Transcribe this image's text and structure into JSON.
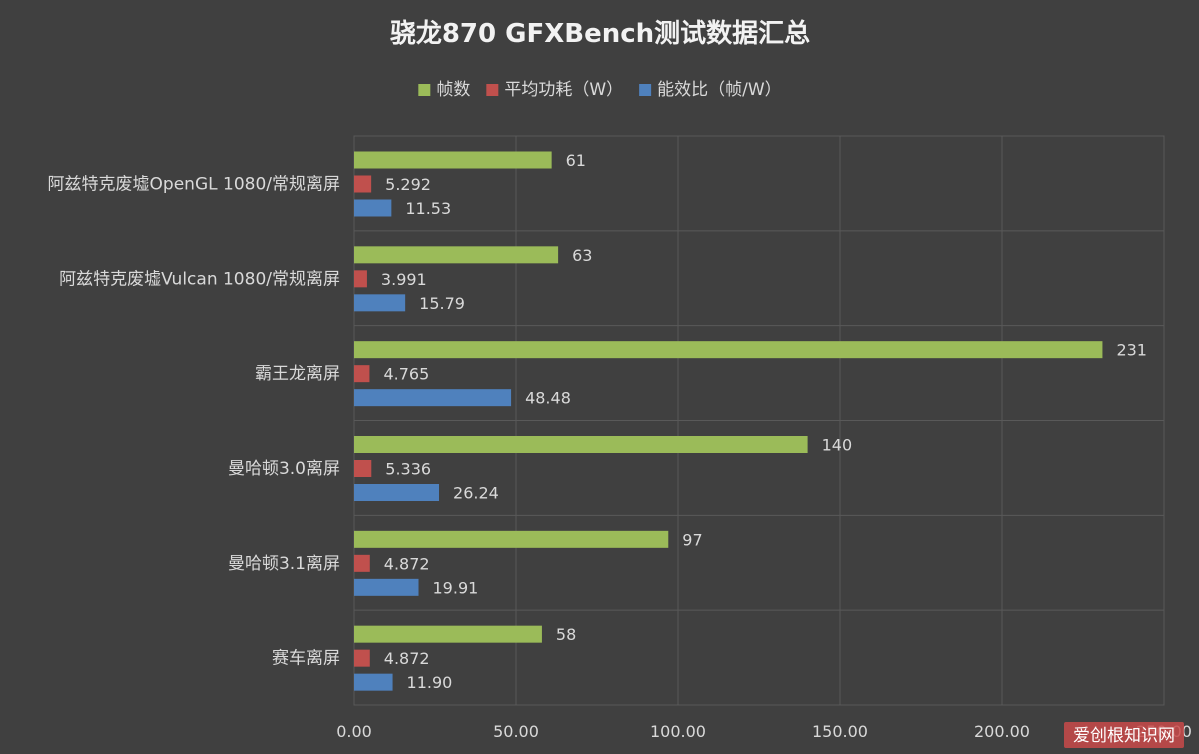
{
  "chart_data": {
    "type": "bar",
    "orientation": "horizontal",
    "title": "骁龙870 GFXBench测试数据汇总",
    "categories": [
      "阿兹特克废墟OpenGL 1080/常规离屏",
      "阿兹特克废墟Vulcan 1080/常规离屏",
      "霸王龙离屏",
      "曼哈顿3.0离屏",
      "曼哈顿3.1离屏",
      "赛车离屏"
    ],
    "series": [
      {
        "name": "帧数",
        "color": "#9bbb59",
        "values": [
          61,
          63,
          231,
          140,
          97,
          58
        ],
        "labels": [
          "61",
          "63",
          "231",
          "140",
          "97",
          "58"
        ]
      },
      {
        "name": "平均功耗（W）",
        "color": "#c0504d",
        "values": [
          5.292,
          3.991,
          4.765,
          5.336,
          4.872,
          4.872
        ],
        "labels": [
          "5.292",
          "3.991",
          "4.765",
          "5.336",
          "4.872",
          "4.872"
        ]
      },
      {
        "name": "能效比（帧/W）",
        "color": "#4f81bd",
        "values": [
          11.53,
          15.79,
          48.48,
          26.24,
          19.91,
          11.9
        ],
        "labels": [
          "11.53",
          "15.79",
          "48.48",
          "26.24",
          "19.91",
          "11.90"
        ]
      }
    ],
    "x_ticks": [
      "0.00",
      "50.00",
      "100.00",
      "150.00",
      "200.00",
      "250.00"
    ],
    "xlim": [
      0,
      250
    ],
    "grid": true,
    "legend_position": "top"
  },
  "watermark": "爱创根知识网"
}
